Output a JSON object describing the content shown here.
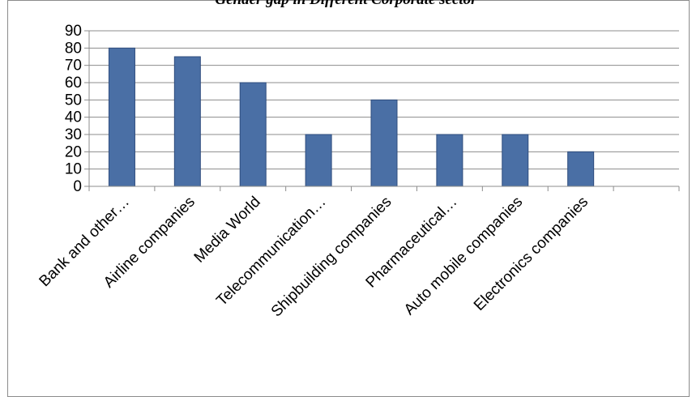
{
  "chart_data": {
    "type": "bar",
    "title": "Gender gap in Different Corporate sector",
    "categories": [
      "Bank and other…",
      "Airline companies",
      "Media World",
      "Telecommunication…",
      "Shipbuilding companies",
      "Pharmaceutical…",
      "Auto mobile companies",
      "Electronics companies",
      ""
    ],
    "values": [
      80,
      75,
      60,
      30,
      50,
      30,
      30,
      20,
      null
    ],
    "ylim": [
      0,
      90
    ],
    "yticks": [
      0,
      10,
      20,
      30,
      40,
      50,
      60,
      70,
      80,
      90
    ],
    "xlabel": "",
    "ylabel": "",
    "grid": true,
    "legend": "none",
    "bar_color": "#4a6fa5",
    "bar_edge_color": "#2f4d7e",
    "grid_color": "#8c8c8c"
  }
}
